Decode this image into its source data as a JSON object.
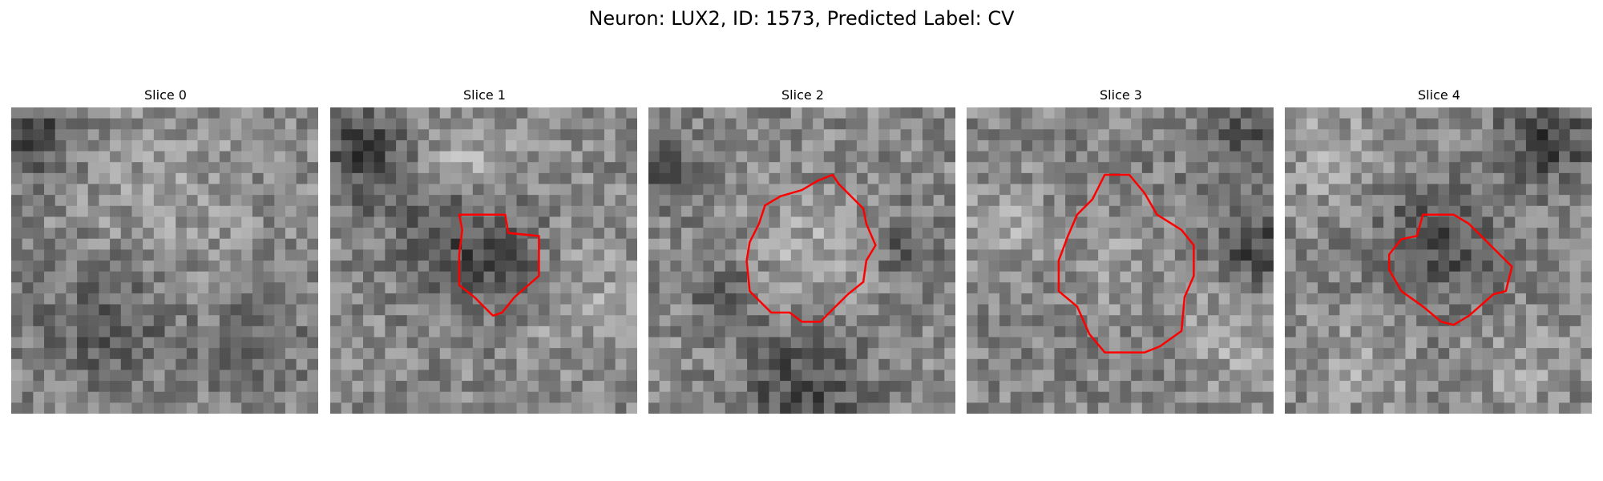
{
  "figure": {
    "title": "Neuron: LUX2, ID: 1573, Predicted Label: CV"
  },
  "contour_color": "#ff0000",
  "slices": [
    {
      "title": "Slice 0",
      "has_contour": false
    },
    {
      "title": "Slice 1",
      "has_contour": true
    },
    {
      "title": "Slice 2",
      "has_contour": true
    },
    {
      "title": "Slice 3",
      "has_contour": true
    },
    {
      "title": "Slice 4",
      "has_contour": true
    }
  ]
}
